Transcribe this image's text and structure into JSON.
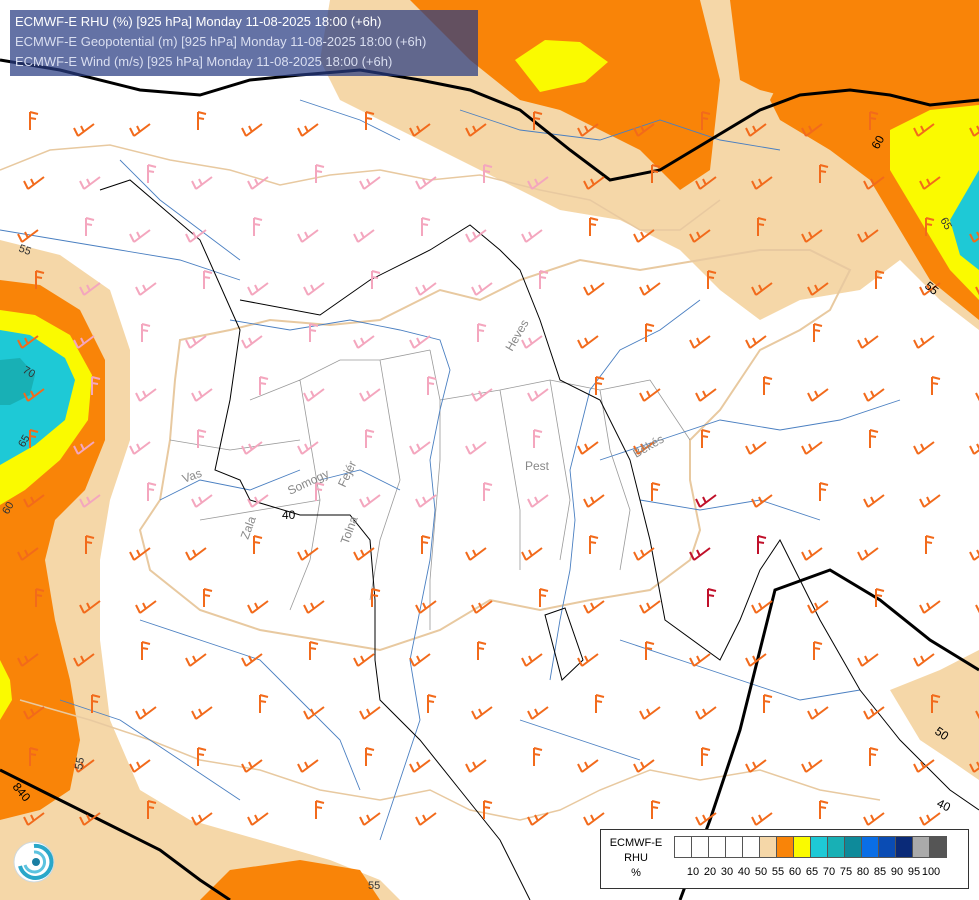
{
  "header": {
    "line1": "ECMWF-E RHU (%) [925 hPa] Monday 11-08-2025 18:00 (+6h)",
    "line2": "ECMWF-E Geopotential (m) [925 hPa] Monday 11-08-2025 18:00 (+6h)",
    "line3": "ECMWF-E Wind (m/s) [925 hPa] Monday 11-08-2025 18:00 (+6h)"
  },
  "legend": {
    "model": "ECMWF-E",
    "variable": "RHU",
    "unit": "%",
    "ticks": [
      "10",
      "20",
      "30",
      "40",
      "50",
      "55",
      "60",
      "65",
      "70",
      "75",
      "80",
      "85",
      "90",
      "95",
      "100"
    ],
    "colors": [
      "#ffffff",
      "#ffffff",
      "#ffffff",
      "#ffffff",
      "#ffffff",
      "#f5d7a8",
      "#f98408",
      "#fafa00",
      "#1ec9d6",
      "#18b0b5",
      "#0e8a9a",
      "#0a6ee6",
      "#0a4cb4",
      "#0a2a78",
      "#aaaaaa",
      "#555555"
    ]
  },
  "labels": {
    "regions": [
      "Heves",
      "Pest",
      "Békés",
      "Vas",
      "Somogy",
      "Fejér",
      "Zala",
      "Tolna"
    ],
    "geopotential": [
      "40",
      "60",
      "50",
      "55",
      "40",
      "840"
    ],
    "rh": [
      "70",
      "65",
      "60",
      "65",
      "55",
      "55",
      "55",
      "55",
      "50",
      "40"
    ]
  },
  "colors": {
    "rh_55": "#f5d7a8",
    "rh_60": "#f98408",
    "rh_65": "#fafa00",
    "rh_70": "#1ec9d6",
    "rh_75": "#18b0b5",
    "wind_light": "#f4a6be",
    "wind_medium": "#f26a1b",
    "wind_strong": "#c0102a",
    "geopotential_line": "#000000",
    "river": "#4a7fc1",
    "country_border": "#e8c9a0",
    "county_border": "#9a9a9a"
  },
  "icons": [
    "logo-swirl-icon"
  ]
}
